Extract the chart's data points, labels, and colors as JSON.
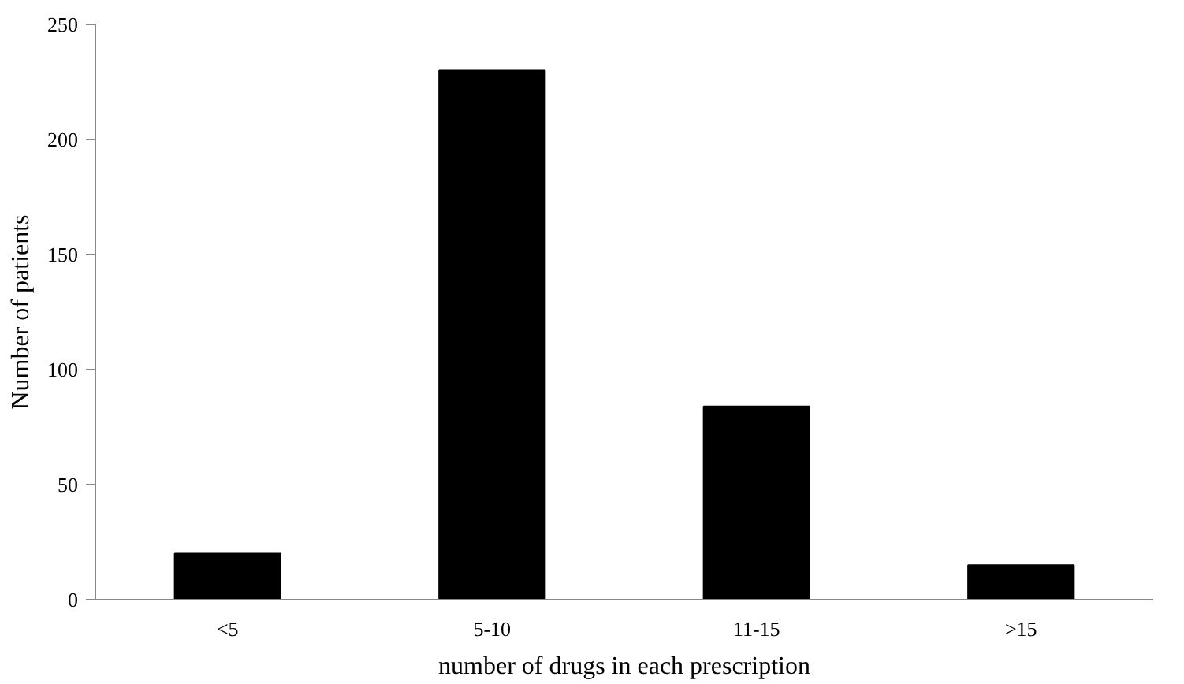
{
  "chart_data": {
    "type": "bar",
    "xlabel": "number of drugs in each prescription",
    "ylabel": "Number of patients",
    "categories": [
      "<5",
      "5-10",
      "11-15",
      ">15"
    ],
    "values": [
      20,
      230,
      84,
      15
    ],
    "color": "#000000",
    "ylim": [
      0,
      250
    ],
    "yticks": [
      0,
      50,
      100,
      150,
      200,
      250
    ],
    "grid": false
  }
}
